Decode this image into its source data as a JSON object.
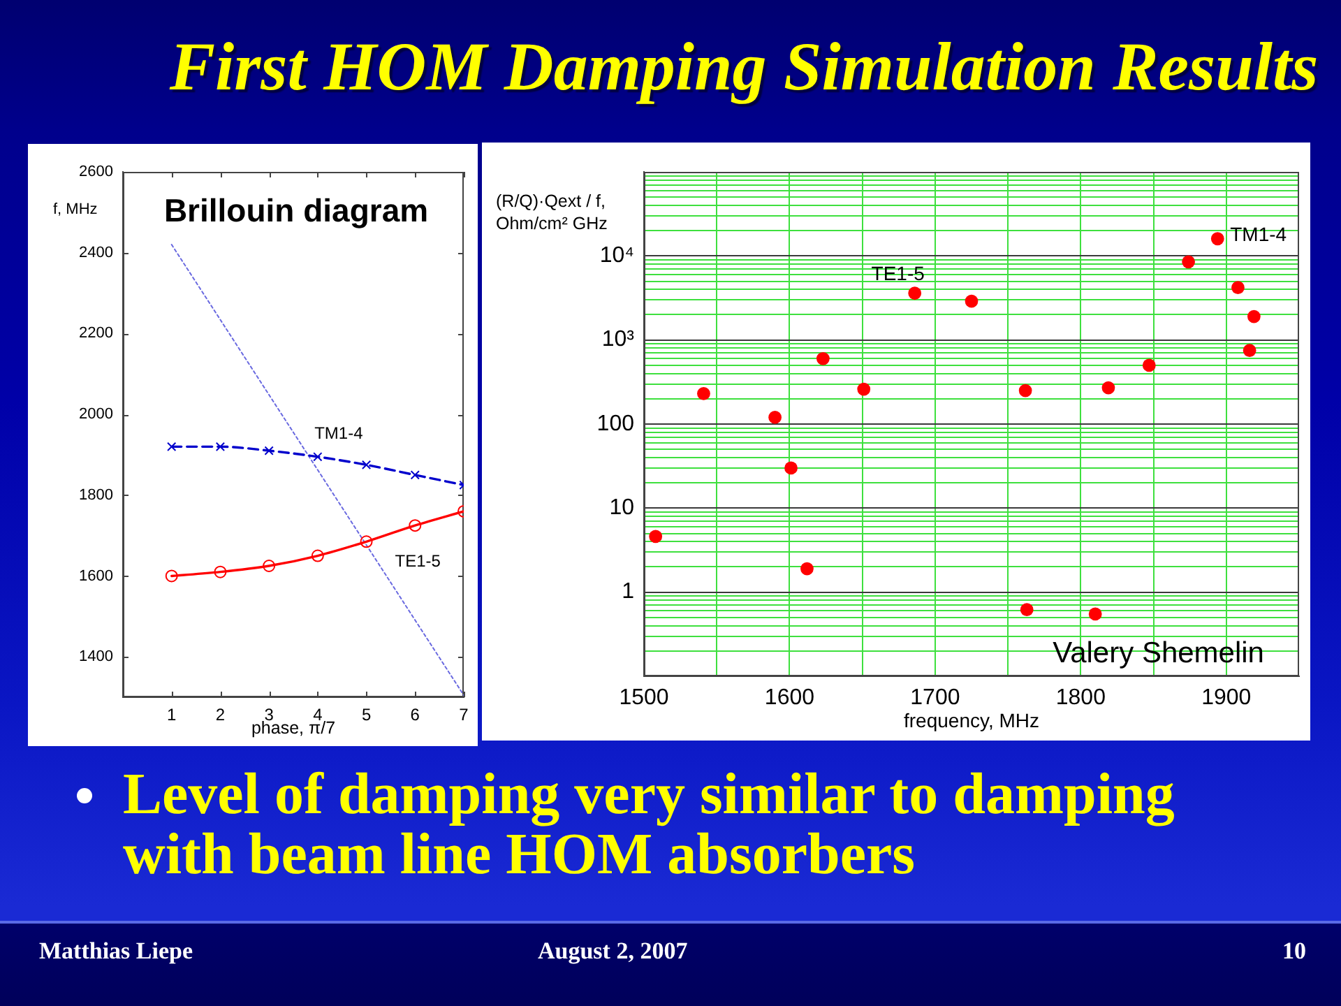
{
  "chart_data": [
    {
      "type": "other",
      "title": "First HOM Damping Simulation Results"
    },
    {
      "type": "line",
      "title": "Brillouin diagram",
      "xlabel": "phase, π/7",
      "ylabel": "f, MHz",
      "x": [
        1,
        2,
        3,
        4,
        5,
        6,
        7
      ],
      "xlim": [
        0,
        7
      ],
      "xticks": [
        1,
        2,
        3,
        4,
        5,
        6,
        7
      ],
      "ylim": [
        1300,
        2600
      ],
      "yticks": [
        1400,
        1600,
        1800,
        2000,
        2200,
        2400,
        2600
      ],
      "legend": false,
      "series": [
        {
          "name": "TE1-5",
          "color": "#ff0000",
          "values": [
            1600,
            1610,
            1625,
            1650,
            1685,
            1725,
            1760
          ],
          "marker": "circle",
          "line_style": "solid"
        },
        {
          "name": "TM1-4",
          "color": "#0000cc",
          "values": [
            1920,
            1920,
            1910,
            1895,
            1875,
            1850,
            1825
          ],
          "marker": "cross",
          "line_style": "dashed"
        },
        {
          "color": "#6a6ae0",
          "x": [
            1,
            7
          ],
          "values": [
            2420,
            1305
          ],
          "marker": "none",
          "line_style": "dotted"
        }
      ]
    },
    {
      "type": "scatter",
      "xlabel": "frequency, MHz",
      "ylabel": "(R/Q)·Qext / f, Ohm/cm² GHz",
      "log": "y",
      "grid": true,
      "legend": false,
      "marker": "circle",
      "color": "#ff0000",
      "x": [
        1508,
        1541,
        1590,
        1601,
        1612,
        1623,
        1651,
        1686,
        1725,
        1762,
        1763,
        1810,
        1819,
        1847,
        1874,
        1894,
        1908,
        1916,
        1919
      ],
      "values": [
        4.6,
        230,
        120,
        30,
        1.9,
        600,
        260,
        3600,
        2900,
        250,
        0.62,
        0.55,
        270,
        500,
        8500,
        16000,
        4200,
        750,
        1900
      ],
      "xlim": [
        1500,
        1950
      ],
      "xticks": [
        1500,
        {
          "value": 1550,
          "label": null
        },
        1600,
        {
          "value": 1650,
          "label": null
        },
        1700,
        {
          "value": 1750,
          "label": null
        },
        1800,
        {
          "value": 1850,
          "label": null
        },
        1900
      ],
      "ylim": [
        0.1,
        100000
      ],
      "yticks": [
        {
          "value": 0.2,
          "label": null
        },
        {
          "value": 0.3,
          "label": null
        },
        {
          "value": 0.4,
          "label": null
        },
        {
          "value": 0.5,
          "label": null
        },
        {
          "value": 0.6,
          "label": null
        },
        {
          "value": 0.7,
          "label": null
        },
        {
          "value": 0.8,
          "label": null
        },
        {
          "value": 0.9,
          "label": null
        },
        1,
        {
          "value": 2,
          "label": null
        },
        {
          "value": 3,
          "label": null
        },
        {
          "value": 4,
          "label": null
        },
        {
          "value": 5,
          "label": null
        },
        {
          "value": 6,
          "label": null
        },
        {
          "value": 7,
          "label": null
        },
        {
          "value": 8,
          "label": null
        },
        {
          "value": 9,
          "label": null
        },
        10,
        {
          "value": 20,
          "label": null
        },
        {
          "value": 30,
          "label": null
        },
        {
          "value": 40,
          "label": null
        },
        {
          "value": 50,
          "label": null
        },
        {
          "value": 60,
          "label": null
        },
        {
          "value": 70,
          "label": null
        },
        {
          "value": 80,
          "label": null
        },
        {
          "value": 90,
          "label": null
        },
        100,
        {
          "value": 200,
          "label": null
        },
        {
          "value": 300,
          "label": null
        },
        {
          "value": 400,
          "label": null
        },
        {
          "value": 500,
          "label": null
        },
        {
          "value": 600,
          "label": null
        },
        {
          "value": 700,
          "label": null
        },
        {
          "value": 800,
          "label": null
        },
        {
          "value": 900,
          "label": null
        },
        {
          "value": 1000,
          "label": "10³"
        },
        {
          "value": 2000,
          "label": null
        },
        {
          "value": 3000,
          "label": null
        },
        {
          "value": 4000,
          "label": null
        },
        {
          "value": 5000,
          "label": null
        },
        {
          "value": 6000,
          "label": null
        },
        {
          "value": 7000,
          "label": null
        },
        {
          "value": 8000,
          "label": null
        },
        {
          "value": 9000,
          "label": null
        },
        {
          "value": 10000,
          "label": "10⁴"
        },
        {
          "value": 20000,
          "label": null
        },
        {
          "value": 30000,
          "label": null
        },
        {
          "value": 40000,
          "label": null
        },
        {
          "value": 50000,
          "label": null
        },
        {
          "value": 60000,
          "label": null
        },
        {
          "value": 70000,
          "label": null
        },
        {
          "value": 80000,
          "label": null
        },
        {
          "value": 90000,
          "label": null
        }
      ],
      "annotations": [
        {
          "text": "TE1-5",
          "x": 1686,
          "y": 3600
        },
        {
          "text": "TM1-4",
          "x": 1894,
          "y": 16000
        },
        "Valery Shemelin"
      ]
    },
    {
      "type": "other",
      "annotations": [
        "Level of damping very similar to damping with beam line HOM absorbers",
        "Matthias Liepe",
        "August 2, 2007",
        "10"
      ]
    }
  ]
}
